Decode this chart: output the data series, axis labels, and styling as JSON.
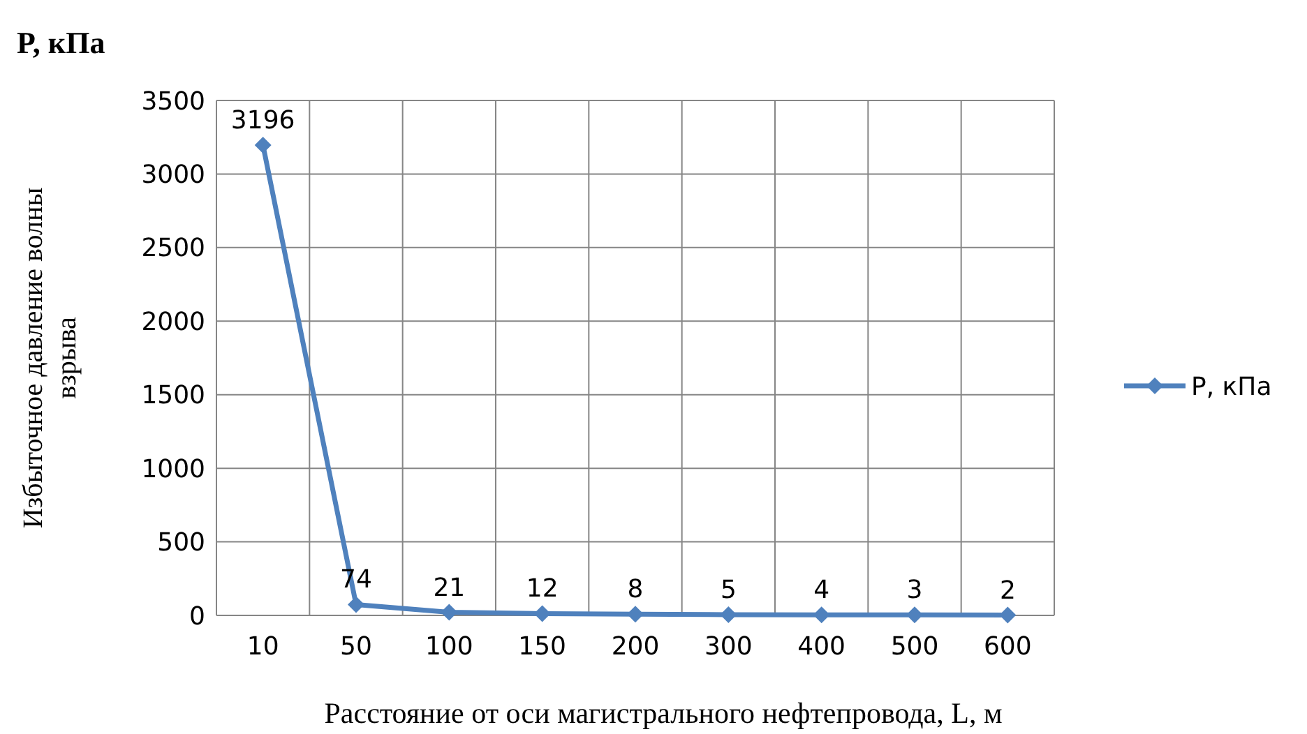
{
  "chart_data": {
    "type": "line",
    "title": "P, кПа",
    "xlabel": "Расстояние от оси магистрального нефтепровода, L, м",
    "ylabel": "Избыточное давление волны взрыва",
    "categories": [
      "10",
      "50",
      "100",
      "150",
      "200",
      "300",
      "400",
      "500",
      "600"
    ],
    "series": [
      {
        "name": "P, кПа",
        "color": "#4f81bd",
        "values": [
          3196,
          74,
          21,
          12,
          8,
          5,
          4,
          3,
          2
        ]
      }
    ],
    "ylim": [
      0,
      3500
    ],
    "yticks": [
      0,
      500,
      1000,
      1500,
      2000,
      2500,
      3000,
      3500
    ],
    "grid": true,
    "legend": "right",
    "marker": "diamond",
    "line_style": "solid",
    "data_labels": true
  }
}
